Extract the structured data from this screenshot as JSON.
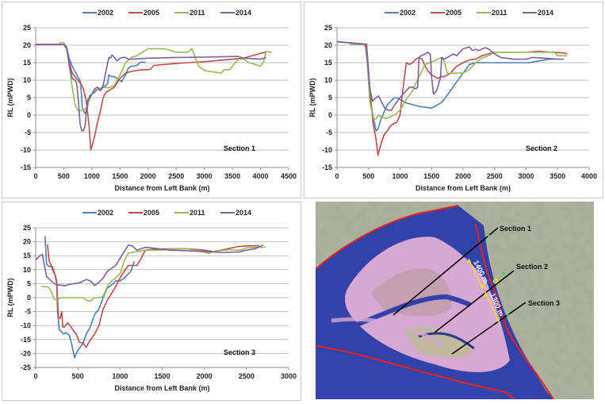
{
  "colors": {
    "2002": "#4a7ebb",
    "2005": "#be4b48",
    "2011": "#98b954",
    "2014": "#7d5fa0",
    "grid": "#bfbfbf",
    "axis": "#8c8c8c"
  },
  "chart_data": [
    {
      "type": "line",
      "id": "section1",
      "title": "",
      "annotation": "Section 1",
      "xlabel": "Distance from Left Bank (m)",
      "ylabel": "RL (mPWD)",
      "xlim": [
        0,
        4500
      ],
      "ylim": [
        -15,
        25
      ],
      "xticks": [
        0,
        500,
        1000,
        1500,
        2000,
        2500,
        3000,
        3500,
        4000,
        4500
      ],
      "yticks": [
        -15,
        -10,
        -5,
        0,
        5,
        10,
        15,
        20,
        25
      ],
      "grid": true,
      "legend": "top",
      "series": [
        {
          "name": "2002",
          "x": [
            0,
            500,
            550,
            600,
            650,
            700,
            750,
            800,
            830,
            860,
            880,
            900,
            930,
            960,
            1000,
            1050,
            1100,
            1150,
            1200,
            1250,
            1280,
            1300,
            1350,
            1400,
            1450,
            1500,
            1530,
            1560,
            1600,
            1650,
            1700,
            1750,
            1800,
            1850,
            1900,
            1950
          ],
          "y": [
            20.2,
            20.2,
            19.5,
            16,
            14,
            12.5,
            11,
            9.5,
            2,
            1,
            0.5,
            1,
            3,
            5.5,
            6,
            6.5,
            7.5,
            7,
            8,
            8.5,
            9,
            11.5,
            11,
            11,
            10.5,
            10,
            9.5,
            10.5,
            11.5,
            13.5,
            14,
            14,
            14.2,
            15,
            15.2,
            15
          ]
        },
        {
          "name": "2005",
          "x": [
            0,
            500,
            550,
            600,
            650,
            700,
            750,
            800,
            850,
            900,
            950,
            980,
            1000,
            1050,
            1100,
            1150,
            1200,
            1250,
            1300,
            1400,
            1500,
            1600,
            1700,
            1800,
            1900,
            2000,
            2050,
            2100,
            2300,
            2500,
            2700,
            3000,
            3300,
            3500,
            3700,
            3800,
            3900,
            4000,
            4100
          ],
          "y": [
            20.2,
            20.2,
            19,
            15,
            12,
            11,
            10,
            9,
            7.5,
            4,
            -3,
            -10,
            -9,
            -6,
            -2,
            1,
            5,
            6.5,
            7,
            8,
            10.5,
            12,
            12.5,
            12.8,
            13,
            13,
            13.2,
            14.2,
            14.5,
            14.8,
            15,
            15.3,
            15.7,
            16,
            16.3,
            16.8,
            17.2,
            17.7,
            18
          ]
        },
        {
          "name": "2011",
          "x": [
            0,
            400,
            450,
            500,
            550,
            600,
            650,
            700,
            750,
            800,
            850,
            900,
            950,
            1000,
            1050,
            1100,
            1200,
            1300,
            1400,
            1500,
            1600,
            1700,
            1800,
            1900,
            2000,
            2100,
            2300,
            2400,
            2500,
            2700,
            2780,
            2850,
            2900,
            3000,
            3100,
            3300,
            3350,
            3450,
            3600,
            3700,
            3800,
            3900,
            4000,
            4050,
            4100,
            4200
          ],
          "y": [
            20.2,
            20.2,
            20.8,
            20.8,
            19.5,
            14,
            8,
            3,
            1.3,
            1.2,
            1.5,
            2,
            4,
            6,
            7,
            7.5,
            8,
            7.8,
            8.5,
            11.5,
            15,
            16.5,
            17,
            18,
            19,
            19,
            19,
            18.5,
            18,
            18,
            19,
            16,
            14,
            12.8,
            12.5,
            12,
            13,
            13,
            16,
            16,
            15,
            14.5,
            14,
            15,
            18.2,
            18
          ]
        },
        {
          "name": "2014",
          "x": [
            0,
            500,
            550,
            600,
            650,
            700,
            730,
            760,
            790,
            820,
            850,
            880,
            900,
            930,
            960,
            1000,
            1050,
            1100,
            1150,
            1200,
            1250,
            1300,
            1330,
            1360,
            1400,
            1450,
            1500,
            1550,
            1600,
            1650,
            1700,
            2000,
            2500,
            3000,
            3600,
            3700,
            3800,
            4000,
            4100
          ],
          "y": [
            20.2,
            20.2,
            19.5,
            14,
            10.5,
            10,
            9,
            4,
            -2.5,
            -4.5,
            -4.5,
            -3,
            1,
            4.5,
            5,
            6,
            7.5,
            8,
            7,
            8.5,
            12.5,
            16.5,
            16.3,
            17.2,
            16.5,
            15.5,
            16.3,
            16.5,
            16.5,
            16,
            16,
            16.3,
            16.5,
            16.6,
            16.8,
            16.3,
            16.2,
            16,
            16.5
          ]
        }
      ]
    },
    {
      "type": "line",
      "id": "section2",
      "title": "",
      "annotation": "Section 2",
      "xlabel": "Distance from Left Bank (m)",
      "ylabel": "RL (mPWD)",
      "xlim": [
        0,
        4000
      ],
      "ylim": [
        -15,
        25
      ],
      "xticks": [
        0,
        500,
        1000,
        1500,
        2000,
        2500,
        3000,
        3500,
        4000
      ],
      "yticks": [
        -15,
        -10,
        -5,
        0,
        5,
        10,
        15,
        20,
        25
      ],
      "grid": true,
      "legend": "top",
      "series": [
        {
          "name": "2002",
          "x": [
            0,
            450,
            480,
            520,
            570,
            620,
            650,
            700,
            800,
            900,
            950,
            1000,
            1100,
            1300,
            1500,
            1550,
            1600,
            1650,
            1700,
            1800,
            1900,
            2000,
            2100,
            2200,
            2500,
            3050,
            3200,
            3350,
            3450
          ],
          "y": [
            21,
            20.3,
            15,
            5,
            0,
            -4.5,
            -4,
            -1,
            3,
            4.8,
            5,
            4.5,
            3.5,
            2.5,
            2,
            2.5,
            3,
            3.5,
            4.5,
            7,
            9.5,
            12,
            14.5,
            15,
            15,
            15,
            15.5,
            16,
            16
          ]
        },
        {
          "name": "2005",
          "x": [
            0,
            450,
            470,
            520,
            570,
            620,
            650,
            700,
            750,
            800,
            850,
            900,
            950,
            1000,
            1050,
            1100,
            1150,
            1200,
            1250,
            1300,
            1350,
            1400,
            1450,
            1500,
            1550,
            1600,
            1650,
            1700,
            1800,
            1900,
            2000,
            2100,
            2200,
            2300,
            2400,
            2500,
            2800,
            3000,
            3200,
            3400,
            3600,
            3650
          ],
          "y": [
            21,
            20.3,
            20.3,
            8,
            -2,
            -7,
            -11.5,
            -8,
            -5.5,
            -4.5,
            -3,
            -2.5,
            -2,
            0,
            8,
            15,
            14.5,
            15,
            16,
            16.5,
            16,
            14,
            12.5,
            11.5,
            11,
            10.5,
            11,
            11,
            12,
            14,
            15,
            15.8,
            16,
            17,
            17.5,
            18,
            18,
            18,
            18.3,
            18,
            17.8,
            17.5
          ]
        },
        {
          "name": "2011",
          "x": [
            200,
            430,
            470,
            520,
            580,
            620,
            660,
            700,
            780,
            850,
            950,
            1000,
            1100,
            1200,
            1300,
            1400,
            1500,
            1600,
            1650,
            1700,
            1750,
            1800,
            1900,
            2000,
            2100,
            2200,
            2300,
            2400,
            2500,
            3000,
            3450,
            3500,
            3550,
            3650
          ],
          "y": [
            20.2,
            20.2,
            19,
            4,
            -1.3,
            -1,
            0,
            -0.5,
            -1,
            -0.5,
            0.5,
            1.5,
            4.5,
            7,
            11,
            14.5,
            15.2,
            16,
            16.5,
            15.5,
            12,
            12,
            12,
            12,
            13,
            15,
            16.3,
            17,
            18,
            18,
            18,
            17,
            17,
            17
          ]
        },
        {
          "name": "2014",
          "x": [
            0,
            450,
            480,
            520,
            560,
            620,
            660,
            700,
            760,
            800,
            860,
            900,
            1000,
            1100,
            1150,
            1200,
            1250,
            1280,
            1300,
            1330,
            1400,
            1430,
            1480,
            1500,
            1530,
            1580,
            1640,
            1660,
            1700,
            1800,
            1850,
            1900,
            2000,
            2100,
            2150,
            2200,
            2250,
            2350,
            2400,
            2500,
            2600,
            2800,
            3000,
            3100,
            3300,
            3500,
            3600
          ],
          "y": [
            21,
            20.3,
            17,
            8,
            4,
            5,
            5.5,
            4,
            2,
            1.5,
            1.3,
            2.5,
            5,
            7,
            8,
            8,
            7.5,
            8,
            16.5,
            17,
            17.5,
            18,
            17.5,
            11,
            6,
            7,
            10.5,
            16.5,
            16,
            17,
            17.5,
            17,
            19,
            19.5,
            18.5,
            18.8,
            18.5,
            19.3,
            19,
            17.5,
            16.5,
            16,
            16,
            16.5,
            16.3,
            16,
            16
          ]
        }
      ]
    },
    {
      "type": "line",
      "id": "section3",
      "title": "",
      "annotation": "Section 3",
      "xlabel": "Distance from Left Bank (m)",
      "ylabel": "RL (mPWD)",
      "xlim": [
        0,
        3000
      ],
      "ylim": [
        -25,
        25
      ],
      "xticks": [
        0,
        500,
        1000,
        1500,
        2000,
        2500,
        3000
      ],
      "yticks": [
        -25,
        -20,
        -15,
        -10,
        -5,
        0,
        5,
        10,
        15,
        20,
        25
      ],
      "grid": true,
      "legend": "top",
      "series": [
        {
          "name": "2002",
          "x": [
            110,
            130,
            150,
            200,
            230,
            250,
            260,
            280,
            300,
            330,
            360,
            400,
            430,
            460,
            480,
            520,
            560,
            600,
            640,
            700,
            750,
            800,
            850,
            900,
            950,
            1000,
            1050,
            1100,
            1130,
            1170
          ],
          "y": [
            22,
            12,
            11.3,
            11,
            8,
            6,
            -5,
            -11.5,
            -12,
            -13,
            -12.5,
            -13.5,
            -17,
            -21.5,
            -20,
            -18,
            -16.5,
            -13,
            -11,
            -6,
            -4,
            0,
            3.5,
            4.5,
            6,
            6,
            7,
            8.5,
            9.5,
            13
          ]
        },
        {
          "name": "2005",
          "x": [
            140,
            160,
            180,
            200,
            230,
            250,
            270,
            290,
            310,
            320,
            340,
            380,
            420,
            450,
            480,
            520,
            560,
            600,
            640,
            700,
            750,
            800,
            850,
            900,
            950,
            1000,
            1050,
            1100,
            1150,
            1200,
            1250,
            1300,
            1400,
            1600,
            1800,
            2000,
            2100,
            2200,
            2400,
            2500,
            2650
          ],
          "y": [
            19,
            13,
            12,
            10,
            8,
            5,
            -7,
            -7.5,
            -5,
            -10.5,
            -10.5,
            -9,
            -10.5,
            -12,
            -13,
            -16,
            -16.2,
            -17.8,
            -15.5,
            -13,
            -10,
            -4,
            -1,
            1.5,
            4,
            7,
            9.5,
            11.5,
            11.5,
            11.5,
            14,
            17,
            17.3,
            17.5,
            17.5,
            17,
            16.5,
            17,
            18.3,
            18.5,
            18.6
          ]
        },
        {
          "name": "2011",
          "x": [
            70,
            150,
            180,
            220,
            250,
            300,
            400,
            500,
            570,
            600,
            650,
            700,
            750,
            800,
            850,
            900,
            950,
            1000,
            1050,
            1100,
            1150,
            1200,
            1300,
            1500,
            1600,
            1800,
            2000,
            2050,
            2100,
            2300,
            2400,
            2450,
            2500,
            2600,
            2730
          ],
          "y": [
            4,
            3.8,
            2.5,
            -0.5,
            -1,
            0,
            0,
            0,
            0,
            -1,
            -1.2,
            0,
            0,
            0.5,
            4,
            6,
            7,
            8.5,
            13,
            16,
            16.2,
            16.5,
            17,
            17,
            17.5,
            17.5,
            16.3,
            15.8,
            16.5,
            17.2,
            17,
            17.2,
            17.8,
            18,
            18
          ]
        },
        {
          "name": "2014",
          "x": [
            0,
            50,
            80,
            100,
            130,
            200,
            250,
            300,
            350,
            400,
            500,
            550,
            600,
            650,
            700,
            750,
            800,
            850,
            900,
            950,
            1000,
            1050,
            1100,
            1150,
            1200,
            1250,
            1300,
            1400,
            1600,
            1800,
            2000,
            2200,
            2400,
            2500,
            2600,
            2700
          ],
          "y": [
            13.5,
            15,
            15.5,
            12,
            7.5,
            5.5,
            4.5,
            4.5,
            4.2,
            4.8,
            5.2,
            5.7,
            6.5,
            6,
            4.3,
            5.5,
            7,
            9.5,
            10.5,
            11.5,
            14,
            16.5,
            18.8,
            18.5,
            17,
            17.5,
            18,
            17.7,
            17,
            16.8,
            16.5,
            16.2,
            16.3,
            17,
            17.5,
            18.8
          ]
        }
      ]
    }
  ],
  "map": {
    "labels": {
      "section1": "Section 1",
      "section2": "Section 2",
      "section3": "Section 3",
      "dist1": "1400 m",
      "dist2": "1300 m"
    }
  }
}
